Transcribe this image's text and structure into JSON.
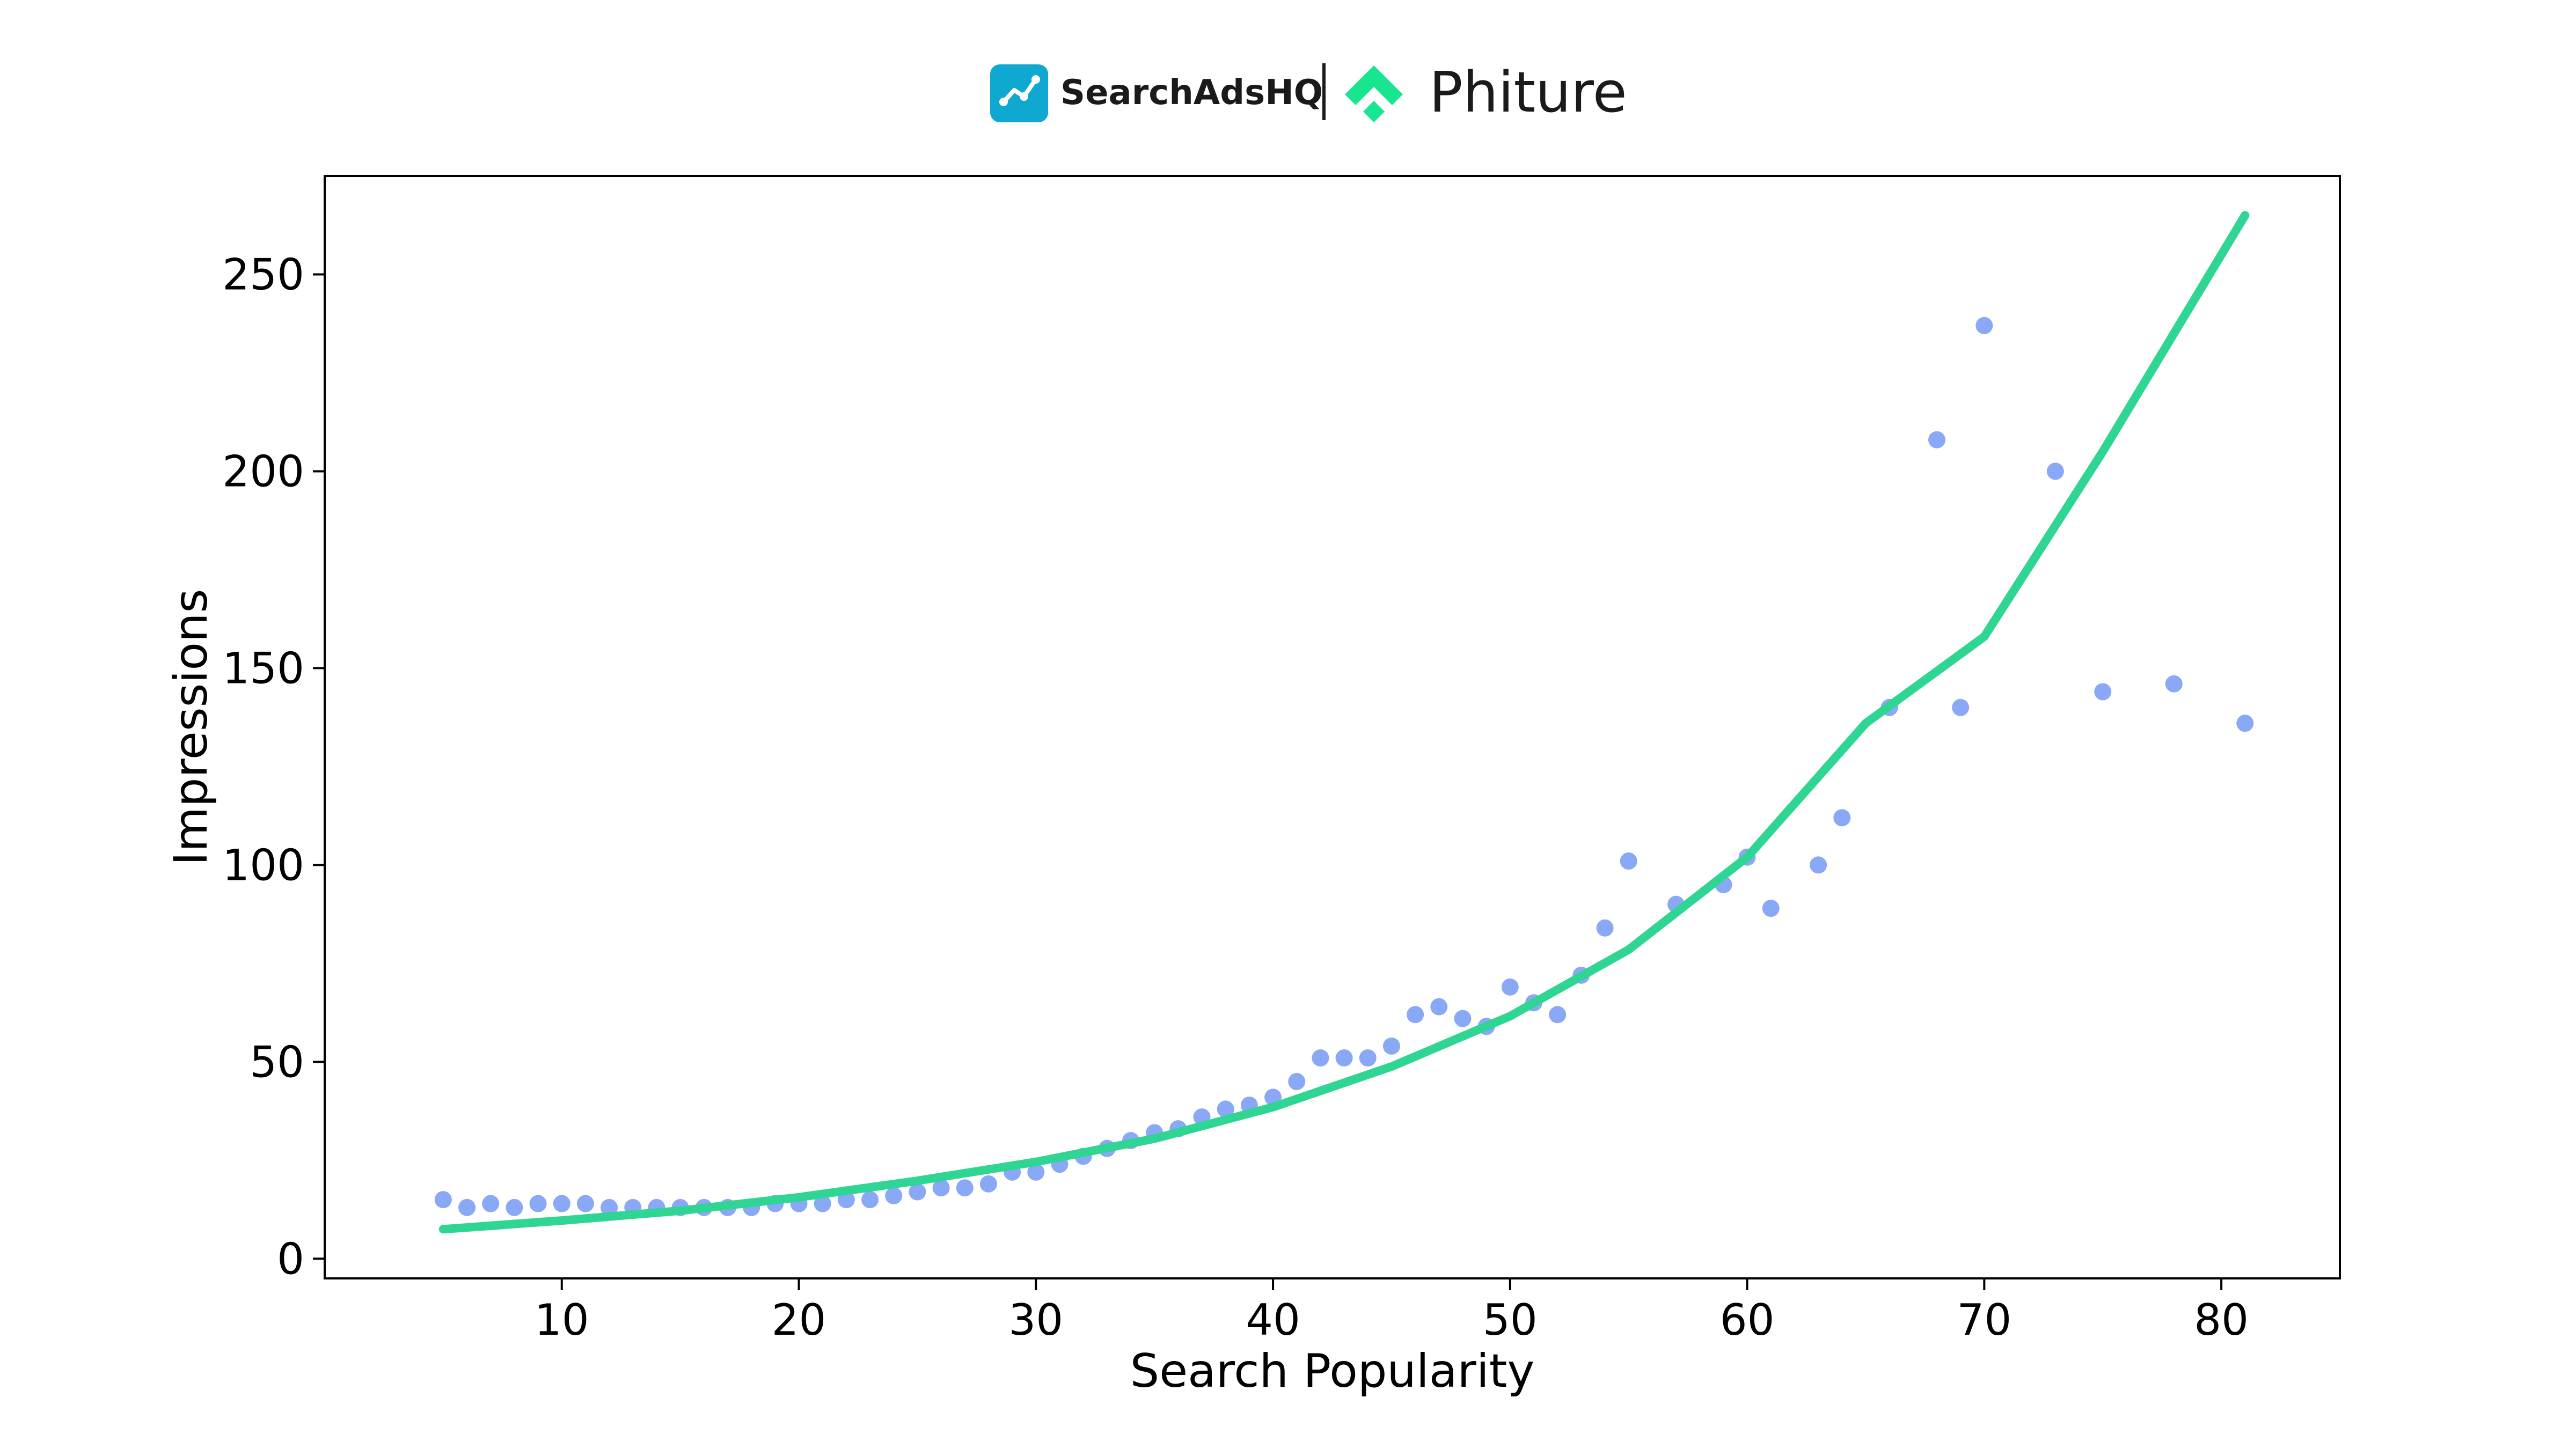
{
  "brands": {
    "left": "SearchAdsHQ",
    "right": "Phiture"
  },
  "colors": {
    "scatter": "#89a8f5",
    "fit_line": "#2fd592",
    "searchadshq_logo": "#0fa8d0",
    "phiture_logo": "#17e58f"
  },
  "chart_data": {
    "type": "scatter",
    "xlabel": "Search Popularity",
    "ylabel": "Impressions",
    "xlim": [
      0,
      85
    ],
    "ylim": [
      -5,
      275
    ],
    "xticks": [
      10,
      20,
      30,
      40,
      50,
      60,
      70,
      80
    ],
    "yticks": [
      0,
      50,
      100,
      150,
      200,
      250
    ],
    "grid": false,
    "points": [
      [
        5,
        15
      ],
      [
        6,
        13
      ],
      [
        7,
        14
      ],
      [
        8,
        13
      ],
      [
        9,
        14
      ],
      [
        10,
        14
      ],
      [
        11,
        14
      ],
      [
        12,
        13
      ],
      [
        13,
        13
      ],
      [
        14,
        13
      ],
      [
        15,
        13
      ],
      [
        16,
        13
      ],
      [
        17,
        13
      ],
      [
        18,
        13
      ],
      [
        19,
        14
      ],
      [
        20,
        14
      ],
      [
        21,
        14
      ],
      [
        22,
        15
      ],
      [
        23,
        15
      ],
      [
        24,
        16
      ],
      [
        25,
        17
      ],
      [
        26,
        18
      ],
      [
        27,
        18
      ],
      [
        28,
        19
      ],
      [
        29,
        22
      ],
      [
        30,
        22
      ],
      [
        31,
        24
      ],
      [
        32,
        26
      ],
      [
        33,
        28
      ],
      [
        34,
        30
      ],
      [
        35,
        32
      ],
      [
        36,
        33
      ],
      [
        37,
        36
      ],
      [
        38,
        38
      ],
      [
        39,
        39
      ],
      [
        40,
        41
      ],
      [
        41,
        45
      ],
      [
        42,
        51
      ],
      [
        43,
        51
      ],
      [
        44,
        51
      ],
      [
        45,
        54
      ],
      [
        46,
        62
      ],
      [
        47,
        64
      ],
      [
        48,
        61
      ],
      [
        49,
        59
      ],
      [
        50,
        69
      ],
      [
        51,
        65
      ],
      [
        52,
        62
      ],
      [
        53,
        72
      ],
      [
        54,
        84
      ],
      [
        55,
        101
      ],
      [
        57,
        90
      ],
      [
        59,
        95
      ],
      [
        60,
        102
      ],
      [
        61,
        89
      ],
      [
        63,
        100
      ],
      [
        64,
        112
      ],
      [
        66,
        140
      ],
      [
        68,
        208
      ],
      [
        69,
        140
      ],
      [
        70,
        237
      ],
      [
        73,
        200
      ],
      [
        75,
        144
      ],
      [
        78,
        146
      ],
      [
        81,
        136
      ]
    ],
    "fit_line": {
      "type": "exponential",
      "x": [
        5,
        10,
        15,
        20,
        25,
        30,
        35,
        40,
        45,
        50,
        55,
        60,
        65,
        70,
        75,
        81
      ],
      "y": [
        7.5,
        9.7,
        12.2,
        15.6,
        19.8,
        24.6,
        30.5,
        38.5,
        48.8,
        61.6,
        78.5,
        102,
        136,
        158,
        205,
        265
      ]
    }
  }
}
